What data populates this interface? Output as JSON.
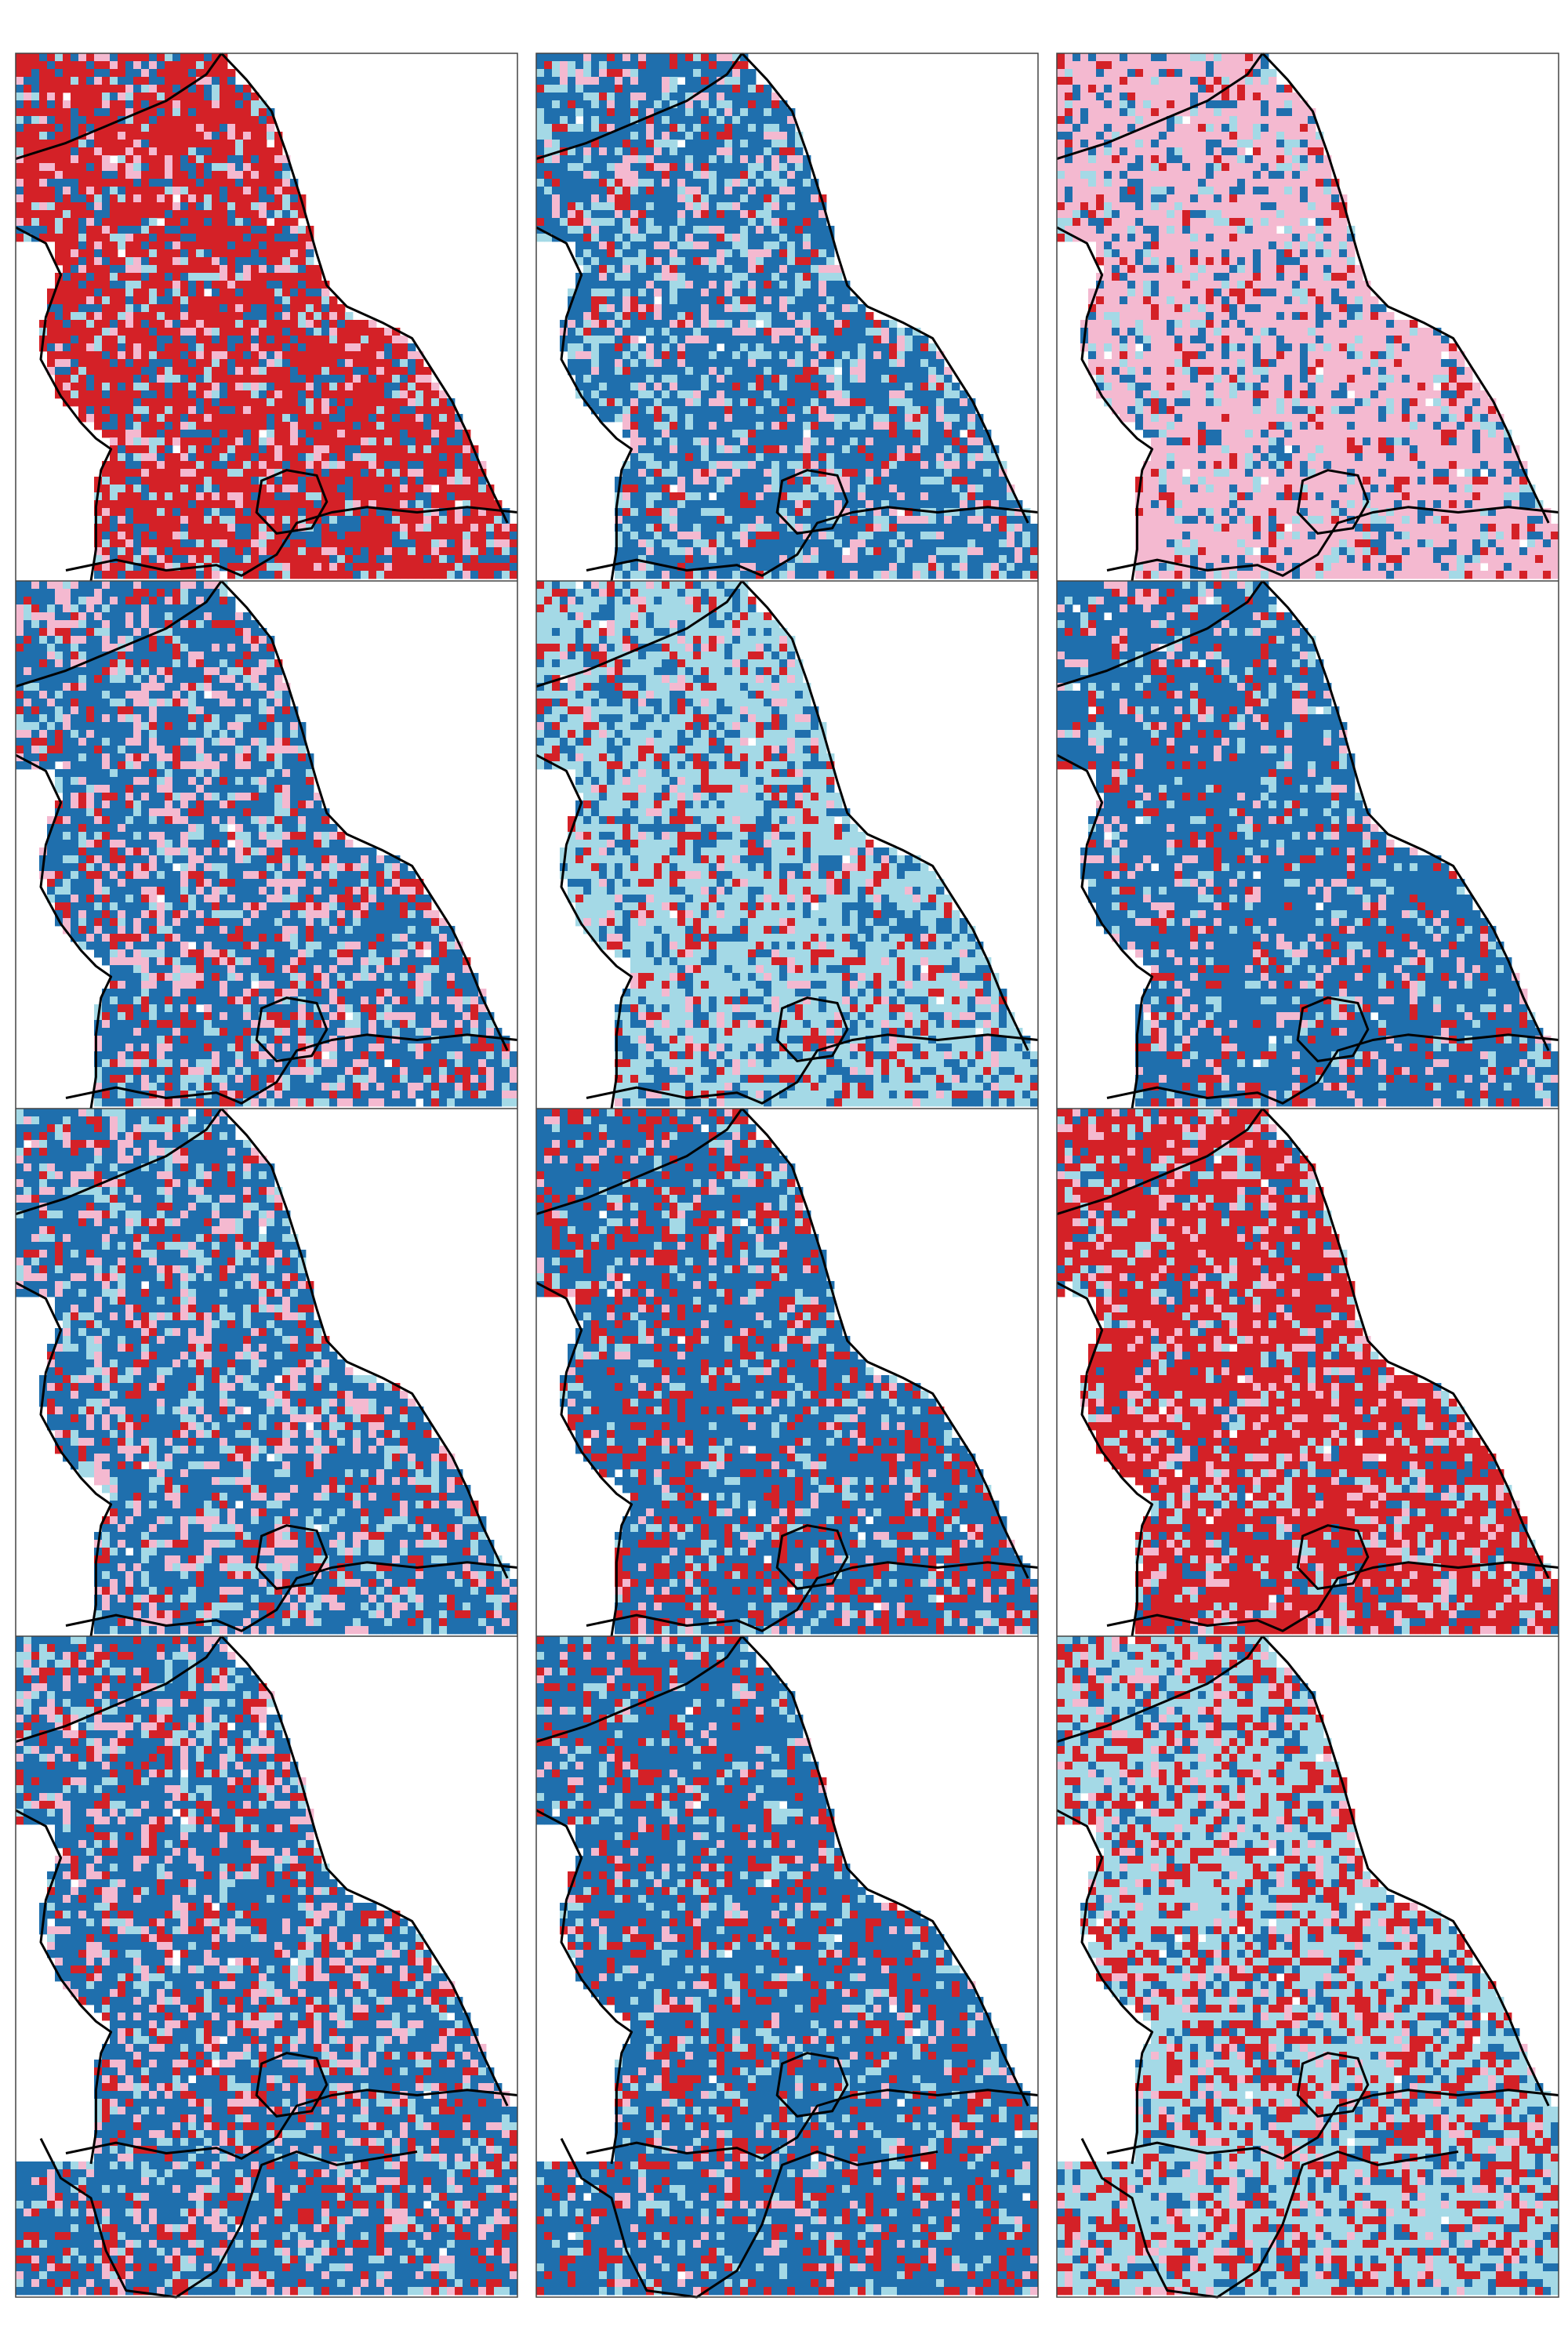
{
  "figure": {
    "columns": 3,
    "rows": 4,
    "legend": [],
    "category_colors": {
      "dark_blue": "#1f6fad",
      "light_blue": "#a4d9e6",
      "pink": "#f4b9d0",
      "red": "#d42127"
    },
    "panels": [
      {
        "id": "r1c1",
        "dominant": "red",
        "mix": {
          "red": 0.62,
          "dark_blue": 0.18,
          "light_blue": 0.1,
          "pink": 0.1
        }
      },
      {
        "id": "r1c2",
        "dominant": "dark_blue",
        "mix": {
          "dark_blue": 0.58,
          "light_blue": 0.22,
          "pink": 0.12,
          "red": 0.08
        }
      },
      {
        "id": "r1c3",
        "dominant": "pink",
        "mix": {
          "pink": 0.66,
          "dark_blue": 0.16,
          "light_blue": 0.1,
          "red": 0.08
        }
      },
      {
        "id": "r2c1",
        "dominant": "dark_blue",
        "mix": {
          "dark_blue": 0.55,
          "pink": 0.2,
          "light_blue": 0.12,
          "red": 0.13
        }
      },
      {
        "id": "r2c2",
        "dominant": "light_blue",
        "mix": {
          "light_blue": 0.56,
          "dark_blue": 0.24,
          "red": 0.12,
          "pink": 0.08
        }
      },
      {
        "id": "r2c3",
        "dominant": "dark_blue",
        "mix": {
          "dark_blue": 0.7,
          "light_blue": 0.1,
          "pink": 0.1,
          "red": 0.1
        }
      },
      {
        "id": "r3c1",
        "dominant": "dark_blue",
        "mix": {
          "dark_blue": 0.58,
          "light_blue": 0.16,
          "pink": 0.16,
          "red": 0.1
        }
      },
      {
        "id": "r3c2",
        "dominant": "dark_blue",
        "mix": {
          "dark_blue": 0.62,
          "red": 0.2,
          "light_blue": 0.12,
          "pink": 0.06
        }
      },
      {
        "id": "r3c3",
        "dominant": "red",
        "mix": {
          "red": 0.64,
          "light_blue": 0.14,
          "dark_blue": 0.12,
          "pink": 0.1
        }
      },
      {
        "id": "r4c1",
        "dominant": "dark_blue",
        "mix": {
          "dark_blue": 0.56,
          "red": 0.16,
          "pink": 0.16,
          "light_blue": 0.12
        }
      },
      {
        "id": "r4c2",
        "dominant": "dark_blue",
        "mix": {
          "dark_blue": 0.66,
          "red": 0.16,
          "light_blue": 0.12,
          "pink": 0.06
        }
      },
      {
        "id": "r4c3",
        "dominant": "light_blue",
        "mix": {
          "light_blue": 0.5,
          "red": 0.26,
          "dark_blue": 0.16,
          "pink": 0.08
        }
      }
    ]
  }
}
